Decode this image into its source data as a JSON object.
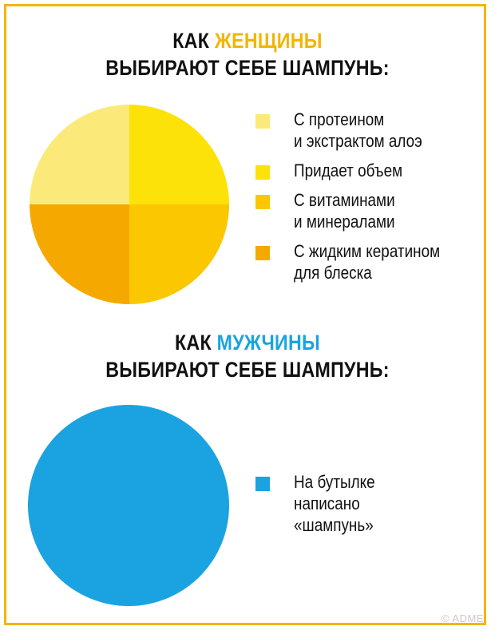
{
  "colors": {
    "frame": "#f2b500",
    "women_accent": "#f2b500",
    "men_accent": "#1aa3e0"
  },
  "chart_data": [
    {
      "type": "pie",
      "title_prefix": "КАК",
      "title_highlight": "ЖЕНЩИНЫ",
      "title_line2": "ВЫБИРАЮТ СЕБЕ ШАМПУНЬ:",
      "slices": [
        {
          "label_lines": [
            "С протеином",
            "и экстрактом алоэ"
          ],
          "value": 25,
          "color": "#fbea7a"
        },
        {
          "label_lines": [
            "Придает объем"
          ],
          "value": 25,
          "color": "#fde20a"
        },
        {
          "label_lines": [
            "С витаминами",
            "и минералами"
          ],
          "value": 25,
          "color": "#fbc700"
        },
        {
          "label_lines": [
            "С жидким кератином",
            "для блеска"
          ],
          "value": 25,
          "color": "#f5a800"
        }
      ]
    },
    {
      "type": "pie",
      "title_prefix": "КАК",
      "title_highlight": "МУЖЧИНЫ",
      "title_line2": "ВЫБИРАЮТ СЕБЕ ШАМПУНЬ:",
      "slices": [
        {
          "label_lines": [
            "На бутылке",
            "написано",
            "«шампунь»"
          ],
          "value": 100,
          "color": "#1aa3e0"
        }
      ]
    }
  ],
  "watermark": "© ADME"
}
